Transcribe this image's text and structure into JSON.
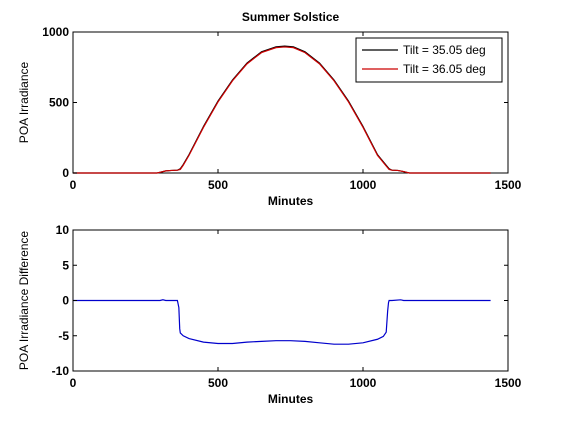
{
  "chart_data": [
    {
      "type": "line",
      "title": "Summer Solstice",
      "xlabel": "Minutes",
      "ylabel": "POA Irradiance",
      "xlim": [
        0,
        1500
      ],
      "ylim": [
        0,
        1000
      ],
      "xticks": [
        0,
        500,
        1000,
        1500
      ],
      "yticks": [
        0,
        500,
        1000
      ],
      "grid": false,
      "legend_position": "top-right",
      "series": [
        {
          "name": "Tilt = 35.05 deg",
          "color": "#000000",
          "x": [
            0,
            290,
            300,
            320,
            340,
            360,
            370,
            380,
            400,
            450,
            500,
            550,
            600,
            650,
            700,
            730,
            760,
            800,
            850,
            900,
            950,
            1000,
            1050,
            1080,
            1090,
            1100,
            1120,
            1140,
            1150,
            1160,
            1440
          ],
          "y": [
            0,
            0,
            5,
            15,
            18,
            20,
            30,
            60,
            130,
            330,
            510,
            660,
            780,
            860,
            895,
            900,
            895,
            860,
            780,
            660,
            510,
            330,
            130,
            55,
            30,
            20,
            18,
            10,
            5,
            0,
            0
          ]
        },
        {
          "name": "Tilt = 36.05 deg",
          "color": "#cc0000",
          "x": [
            0,
            290,
            300,
            320,
            340,
            360,
            370,
            380,
            400,
            450,
            500,
            550,
            600,
            650,
            700,
            730,
            760,
            800,
            850,
            900,
            950,
            1000,
            1050,
            1080,
            1090,
            1100,
            1120,
            1140,
            1150,
            1160,
            1440
          ],
          "y": [
            0,
            0,
            5,
            15,
            18,
            20,
            25,
            55,
            125,
            324,
            504,
            654,
            774,
            854,
            889,
            894,
            889,
            854,
            774,
            654,
            504,
            324,
            125,
            50,
            25,
            20,
            18,
            10,
            5,
            0,
            0
          ]
        }
      ]
    },
    {
      "type": "line",
      "title": "",
      "xlabel": "Minutes",
      "ylabel": "POA Irradiance Difference",
      "xlim": [
        0,
        1500
      ],
      "ylim": [
        -10,
        10
      ],
      "xticks": [
        0,
        500,
        1000,
        1500
      ],
      "yticks": [
        -10,
        -5,
        0,
        5,
        10
      ],
      "grid": false,
      "series": [
        {
          "color": "#0000cc",
          "x": [
            0,
            300,
            310,
            320,
            360,
            365,
            368,
            370,
            380,
            400,
            450,
            500,
            550,
            600,
            650,
            700,
            750,
            800,
            850,
            900,
            950,
            1000,
            1050,
            1070,
            1080,
            1085,
            1088,
            1090,
            1100,
            1130,
            1140,
            1440
          ],
          "y": [
            0,
            0,
            0.1,
            0,
            0,
            -1.0,
            -4.0,
            -4.6,
            -5.0,
            -5.4,
            -5.9,
            -6.1,
            -6.1,
            -5.9,
            -5.8,
            -5.7,
            -5.7,
            -5.8,
            -6.0,
            -6.2,
            -6.2,
            -6.0,
            -5.5,
            -5.1,
            -4.5,
            -1.5,
            -0.3,
            0,
            0,
            0.1,
            0,
            0
          ]
        }
      ]
    }
  ]
}
